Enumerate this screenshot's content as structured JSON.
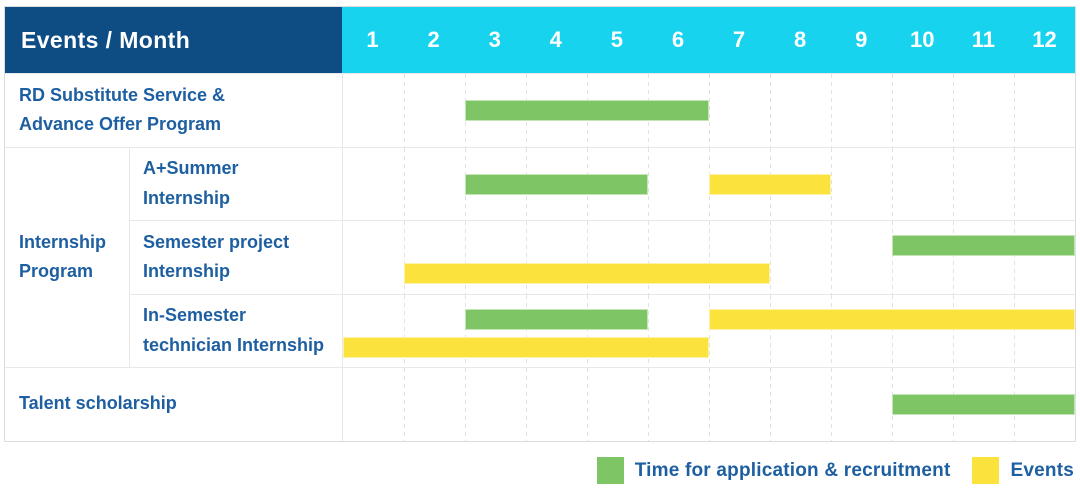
{
  "chart_data": {
    "type": "gantt",
    "title": "Events / Month",
    "months": [
      "1",
      "2",
      "3",
      "4",
      "5",
      "6",
      "7",
      "8",
      "9",
      "10",
      "11",
      "12"
    ],
    "x_range": [
      1,
      12
    ],
    "group_label": "Internship\nProgram",
    "colors": {
      "header_bg": "#0e4d84",
      "months_bg": "#17d3ee",
      "label_text": "#1d5fa1",
      "recruitment": "#7ec565",
      "event": "#fbe23c"
    },
    "rows": [
      {
        "label": "RD Substitute Service &\nAdvance Offer Program",
        "group": null,
        "bars": [
          {
            "type": "recruitment",
            "start": 3,
            "end": 6,
            "line": "middle"
          }
        ]
      },
      {
        "label": "A+Summer\nInternship",
        "group": "Internship Program",
        "bars": [
          {
            "type": "recruitment",
            "start": 3,
            "end": 5,
            "line": "middle"
          },
          {
            "type": "event",
            "start": 7,
            "end": 8,
            "line": "middle"
          }
        ]
      },
      {
        "label": "Semester project\nInternship",
        "group": "Internship Program",
        "bars": [
          {
            "type": "recruitment",
            "start": 10,
            "end": 12,
            "line": "upper"
          },
          {
            "type": "event",
            "start": 2,
            "end": 7,
            "line": "lower"
          }
        ]
      },
      {
        "label": "In-Semester\ntechnician Internship",
        "group": "Internship Program",
        "bars": [
          {
            "type": "recruitment",
            "start": 3,
            "end": 5,
            "line": "upper"
          },
          {
            "type": "event",
            "start": 7,
            "end": 12,
            "line": "upper"
          },
          {
            "type": "event",
            "start": 1,
            "end": 6,
            "line": "lower"
          }
        ]
      },
      {
        "label": "Talent scholarship",
        "group": null,
        "bars": [
          {
            "type": "recruitment",
            "start": 10,
            "end": 12,
            "line": "middle"
          }
        ]
      }
    ],
    "legend": [
      {
        "type": "recruitment",
        "label": "Time for application & recruitment"
      },
      {
        "type": "event",
        "label": "Events"
      }
    ],
    "legend_position": "bottom-right",
    "grid": "dashed-vertical-per-month"
  }
}
